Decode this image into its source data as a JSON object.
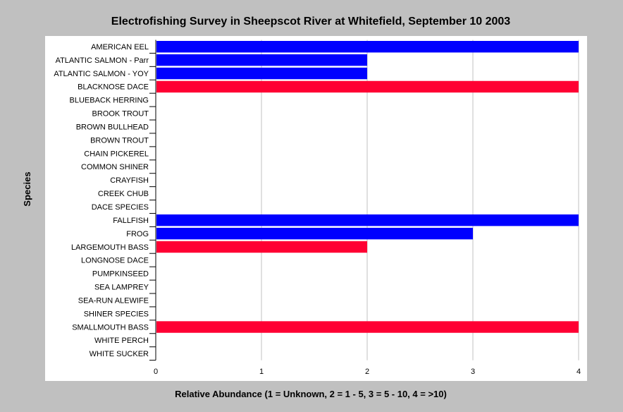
{
  "chart_data": {
    "type": "bar",
    "orientation": "horizontal",
    "title": "Electrofishing Survey in Sheepscot River at Whitefield, September 10 2003",
    "xlabel": "Relative Abundance (1 = Unknown, 2 = 1 - 5, 3 = 5 - 10, 4 = >10)",
    "ylabel": "Species",
    "xlim": [
      0,
      4
    ],
    "xticks": [
      "0",
      "1",
      "2",
      "3",
      "4"
    ],
    "grid": true,
    "legend": "none",
    "categories": [
      "AMERICAN EEL",
      "ATLANTIC SALMON - Parr",
      "ATLANTIC SALMON - YOY",
      "BLACKNOSE DACE",
      "BLUEBACK HERRING",
      "BROOK TROUT",
      "BROWN BULLHEAD",
      "BROWN TROUT",
      "CHAIN PICKEREL",
      "COMMON SHINER",
      "CRAYFISH",
      "CREEK CHUB",
      "DACE SPECIES",
      "FALLFISH",
      "FROG",
      "LARGEMOUTH BASS",
      "LONGNOSE DACE",
      "PUMPKINSEED",
      "SEA LAMPREY",
      "SEA-RUN ALEWIFE",
      "SHINER SPECIES",
      "SMALLMOUTH BASS",
      "WHITE PERCH",
      "WHITE SUCKER"
    ],
    "values": [
      4,
      2,
      2,
      4,
      0,
      0,
      0,
      0,
      0,
      0,
      0,
      0,
      0,
      4,
      3,
      2,
      0,
      0,
      0,
      0,
      0,
      4,
      0,
      0
    ],
    "bar_colors": [
      "#0000ff",
      "#0000ff",
      "#0000ff",
      "#ff0033",
      "#0000ff",
      "#0000ff",
      "#0000ff",
      "#0000ff",
      "#0000ff",
      "#0000ff",
      "#0000ff",
      "#0000ff",
      "#0000ff",
      "#0000ff",
      "#0000ff",
      "#ff0033",
      "#0000ff",
      "#0000ff",
      "#0000ff",
      "#0000ff",
      "#0000ff",
      "#ff0033",
      "#0000ff",
      "#0000ff"
    ],
    "colors": {
      "background": "#c0c0c0",
      "plot_background": "#ffffff",
      "grid": "#c0c0c0",
      "native": "#0000ff",
      "introduced": "#ff0033"
    }
  }
}
